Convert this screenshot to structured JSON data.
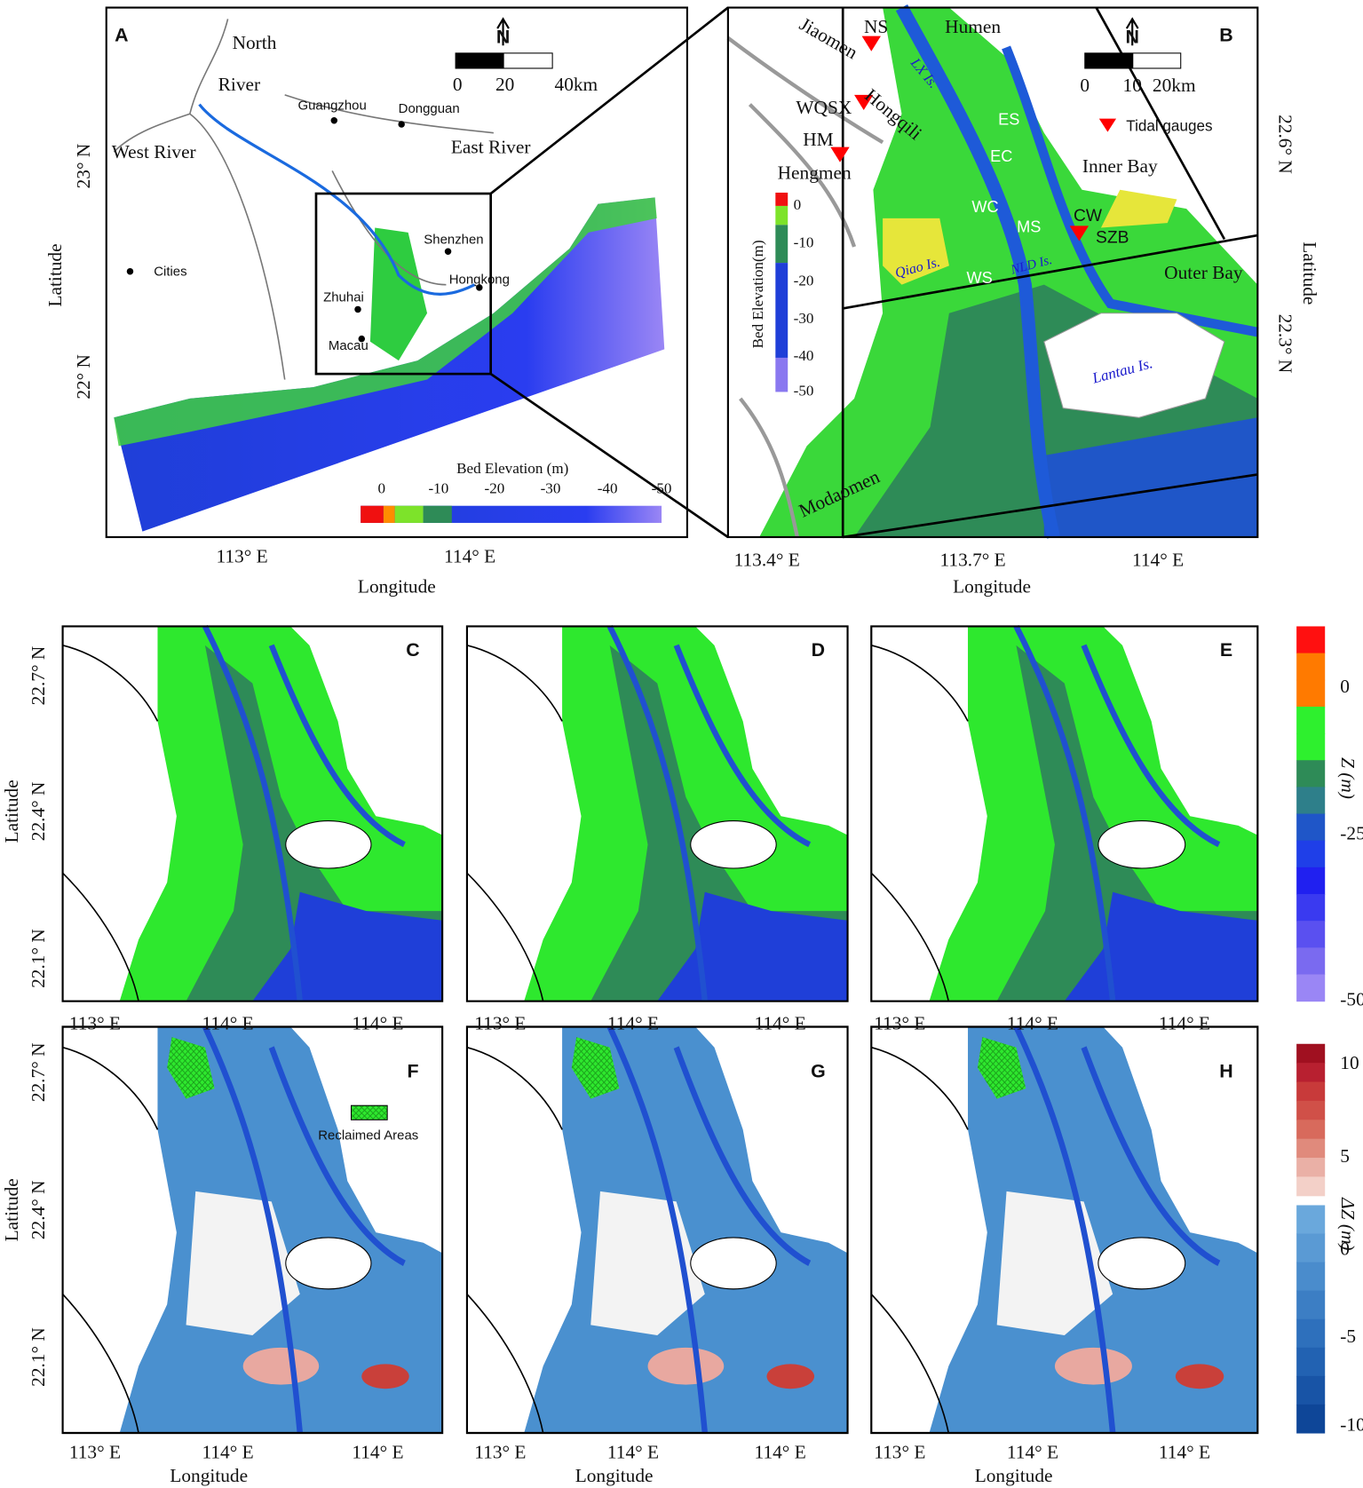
{
  "panel_a": {
    "label": "A",
    "places": [
      "North",
      "River",
      "West River",
      "Guangzhou",
      "Dongguan",
      "East River",
      "Shenzhen",
      "Hongkong",
      "Zhuhai",
      "Macau"
    ],
    "legend": "Cities",
    "north": "N",
    "scale_labels": [
      "0",
      "20",
      "40km"
    ],
    "colorbar_title": "Bed Elevation (m)",
    "colorbar_ticks": [
      "0",
      "-10",
      "-20",
      "-30",
      "-40",
      "-50"
    ],
    "x_ticks": [
      "113° E",
      "114° E"
    ],
    "y_ticks": [
      "23° N",
      "22° N"
    ],
    "x_label": "Longitude",
    "y_label": "Latitude"
  },
  "panel_b": {
    "label": "B",
    "places": [
      "NS",
      "Humen",
      "Jiaomen",
      "LX Is.",
      "WQSX",
      "Hongqili",
      "HM",
      "Hengmen",
      "ES",
      "EC",
      "WC",
      "MS",
      "CW",
      "SZB",
      "Inner Bay",
      "Outer Bay",
      "Qiao Is.",
      "WS",
      "NLD Is.",
      "Lantau Is.",
      "Modaomen"
    ],
    "legend": "Tidal gauges",
    "north": "N",
    "scale_labels": [
      "0",
      "10",
      "20km"
    ],
    "colorbar_title": "Bed Elevation(m)",
    "colorbar_ticks": [
      "0",
      "-10",
      "-20",
      "-30",
      "-40",
      "-50"
    ],
    "x_ticks": [
      "113.4° E",
      "113.7° E",
      "114° E"
    ],
    "y_ticks": [
      "22.6° N",
      "22.3° N"
    ],
    "x_label": "Longitude",
    "y_label": "Latitude"
  },
  "panels_cde": {
    "labels": [
      "C",
      "D",
      "E"
    ],
    "x_ticks": [
      "113° E",
      "114° E",
      "114° E"
    ],
    "y_ticks": [
      "22.7° N",
      "22.4° N",
      "22.1° N"
    ],
    "y_label": "Latitude",
    "colorbar_title": "Z (m)",
    "colorbar_ticks": [
      "0",
      "-25",
      "-50"
    ]
  },
  "panels_fgh": {
    "labels": [
      "F",
      "G",
      "H"
    ],
    "legend": "Reclaimed Areas",
    "x_ticks": [
      "113° E",
      "114° E",
      "114° E"
    ],
    "y_ticks": [
      "22.7° N",
      "22.4° N",
      "22.1° N"
    ],
    "x_label": "Longitude",
    "y_label": "Latitude",
    "colorbar_title": "ΔZ (m)",
    "colorbar_ticks": [
      "10",
      "5",
      "0",
      "-5",
      "-10"
    ]
  }
}
